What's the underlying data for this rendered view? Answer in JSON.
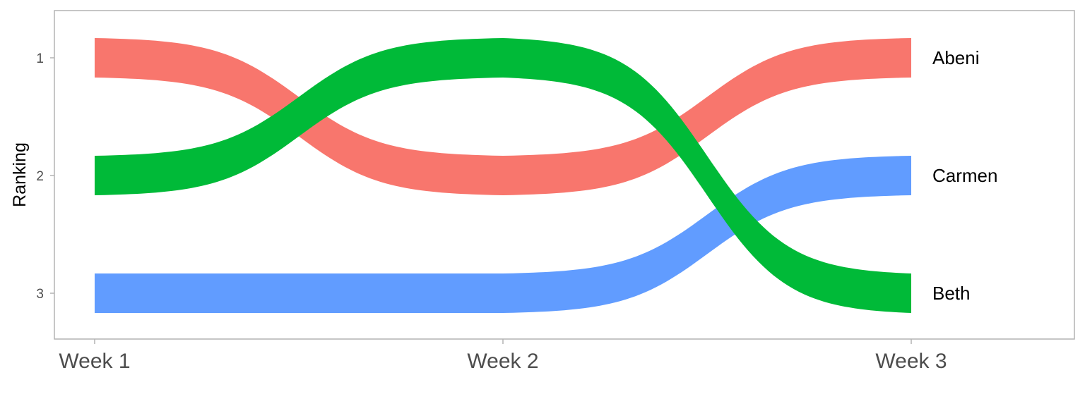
{
  "chart_data": {
    "type": "line",
    "subtype": "bump",
    "title": "",
    "xlabel": "",
    "ylabel": "Ranking",
    "categories": [
      "Week 1",
      "Week 2",
      "Week 3"
    ],
    "y_ticks": [
      1,
      2,
      3
    ],
    "ylim": [
      3.4,
      0.6
    ],
    "y_reversed": true,
    "grid": false,
    "legend": "none",
    "series": [
      {
        "name": "Abeni",
        "values": [
          1,
          2,
          1
        ],
        "color": "#F8766D"
      },
      {
        "name": "Beth",
        "values": [
          3,
          3,
          2
        ],
        "color": "#619CFF"
      },
      {
        "name": "Carmen",
        "values": [
          2,
          1,
          3
        ],
        "color": "#00BA38"
      }
    ],
    "end_labels": [
      "Abeni",
      "Carmen",
      "Beth"
    ]
  }
}
